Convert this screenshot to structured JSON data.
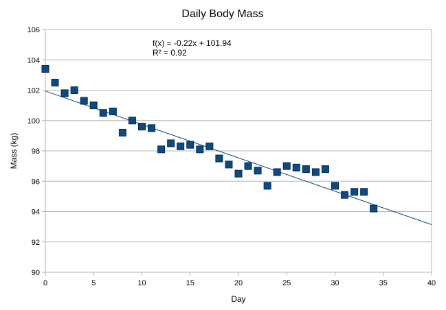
{
  "chart_data": {
    "type": "scatter",
    "title": "Daily Body Mass",
    "xlabel": "Day",
    "ylabel": "Mass (kg)",
    "xlim": [
      0,
      40
    ],
    "ylim": [
      90,
      106
    ],
    "xticks": [
      0,
      5,
      10,
      15,
      20,
      25,
      30,
      35,
      40
    ],
    "yticks": [
      90,
      92,
      94,
      96,
      98,
      100,
      102,
      104,
      106
    ],
    "grid": "horizontal",
    "legend": "none",
    "colors": {
      "marker": "#0e4a80",
      "marker_edge": "#002a55",
      "trendline": "#0e4a80",
      "grid": "#b3b3b3",
      "axis": "#b3b3b3"
    },
    "trendline": {
      "slope": -0.22,
      "intercept": 101.94,
      "equation_label": "f(x) = -0.22x + 101.94",
      "r2_label": "R² = 0.92"
    },
    "points": [
      {
        "x": 0,
        "y": 103.4
      },
      {
        "x": 1,
        "y": 102.5
      },
      {
        "x": 2,
        "y": 101.8
      },
      {
        "x": 3,
        "y": 102.0
      },
      {
        "x": 4,
        "y": 101.3
      },
      {
        "x": 5,
        "y": 101.0
      },
      {
        "x": 6,
        "y": 100.5
      },
      {
        "x": 7,
        "y": 100.6
      },
      {
        "x": 8,
        "y": 99.2
      },
      {
        "x": 9,
        "y": 100.0
      },
      {
        "x": 10,
        "y": 99.6
      },
      {
        "x": 11,
        "y": 99.5
      },
      {
        "x": 12,
        "y": 98.1
      },
      {
        "x": 13,
        "y": 98.5
      },
      {
        "x": 14,
        "y": 98.3
      },
      {
        "x": 15,
        "y": 98.4
      },
      {
        "x": 16,
        "y": 98.1
      },
      {
        "x": 17,
        "y": 98.3
      },
      {
        "x": 18,
        "y": 97.5
      },
      {
        "x": 19,
        "y": 97.1
      },
      {
        "x": 20,
        "y": 96.5
      },
      {
        "x": 21,
        "y": 97.0
      },
      {
        "x": 22,
        "y": 96.7
      },
      {
        "x": 23,
        "y": 95.7
      },
      {
        "x": 24,
        "y": 96.6
      },
      {
        "x": 25,
        "y": 97.0
      },
      {
        "x": 26,
        "y": 96.9
      },
      {
        "x": 27,
        "y": 96.8
      },
      {
        "x": 28,
        "y": 96.6
      },
      {
        "x": 29,
        "y": 96.8
      },
      {
        "x": 30,
        "y": 95.7
      },
      {
        "x": 31,
        "y": 95.1
      },
      {
        "x": 32,
        "y": 95.3
      },
      {
        "x": 33,
        "y": 95.3
      },
      {
        "x": 34,
        "y": 94.2
      }
    ]
  }
}
